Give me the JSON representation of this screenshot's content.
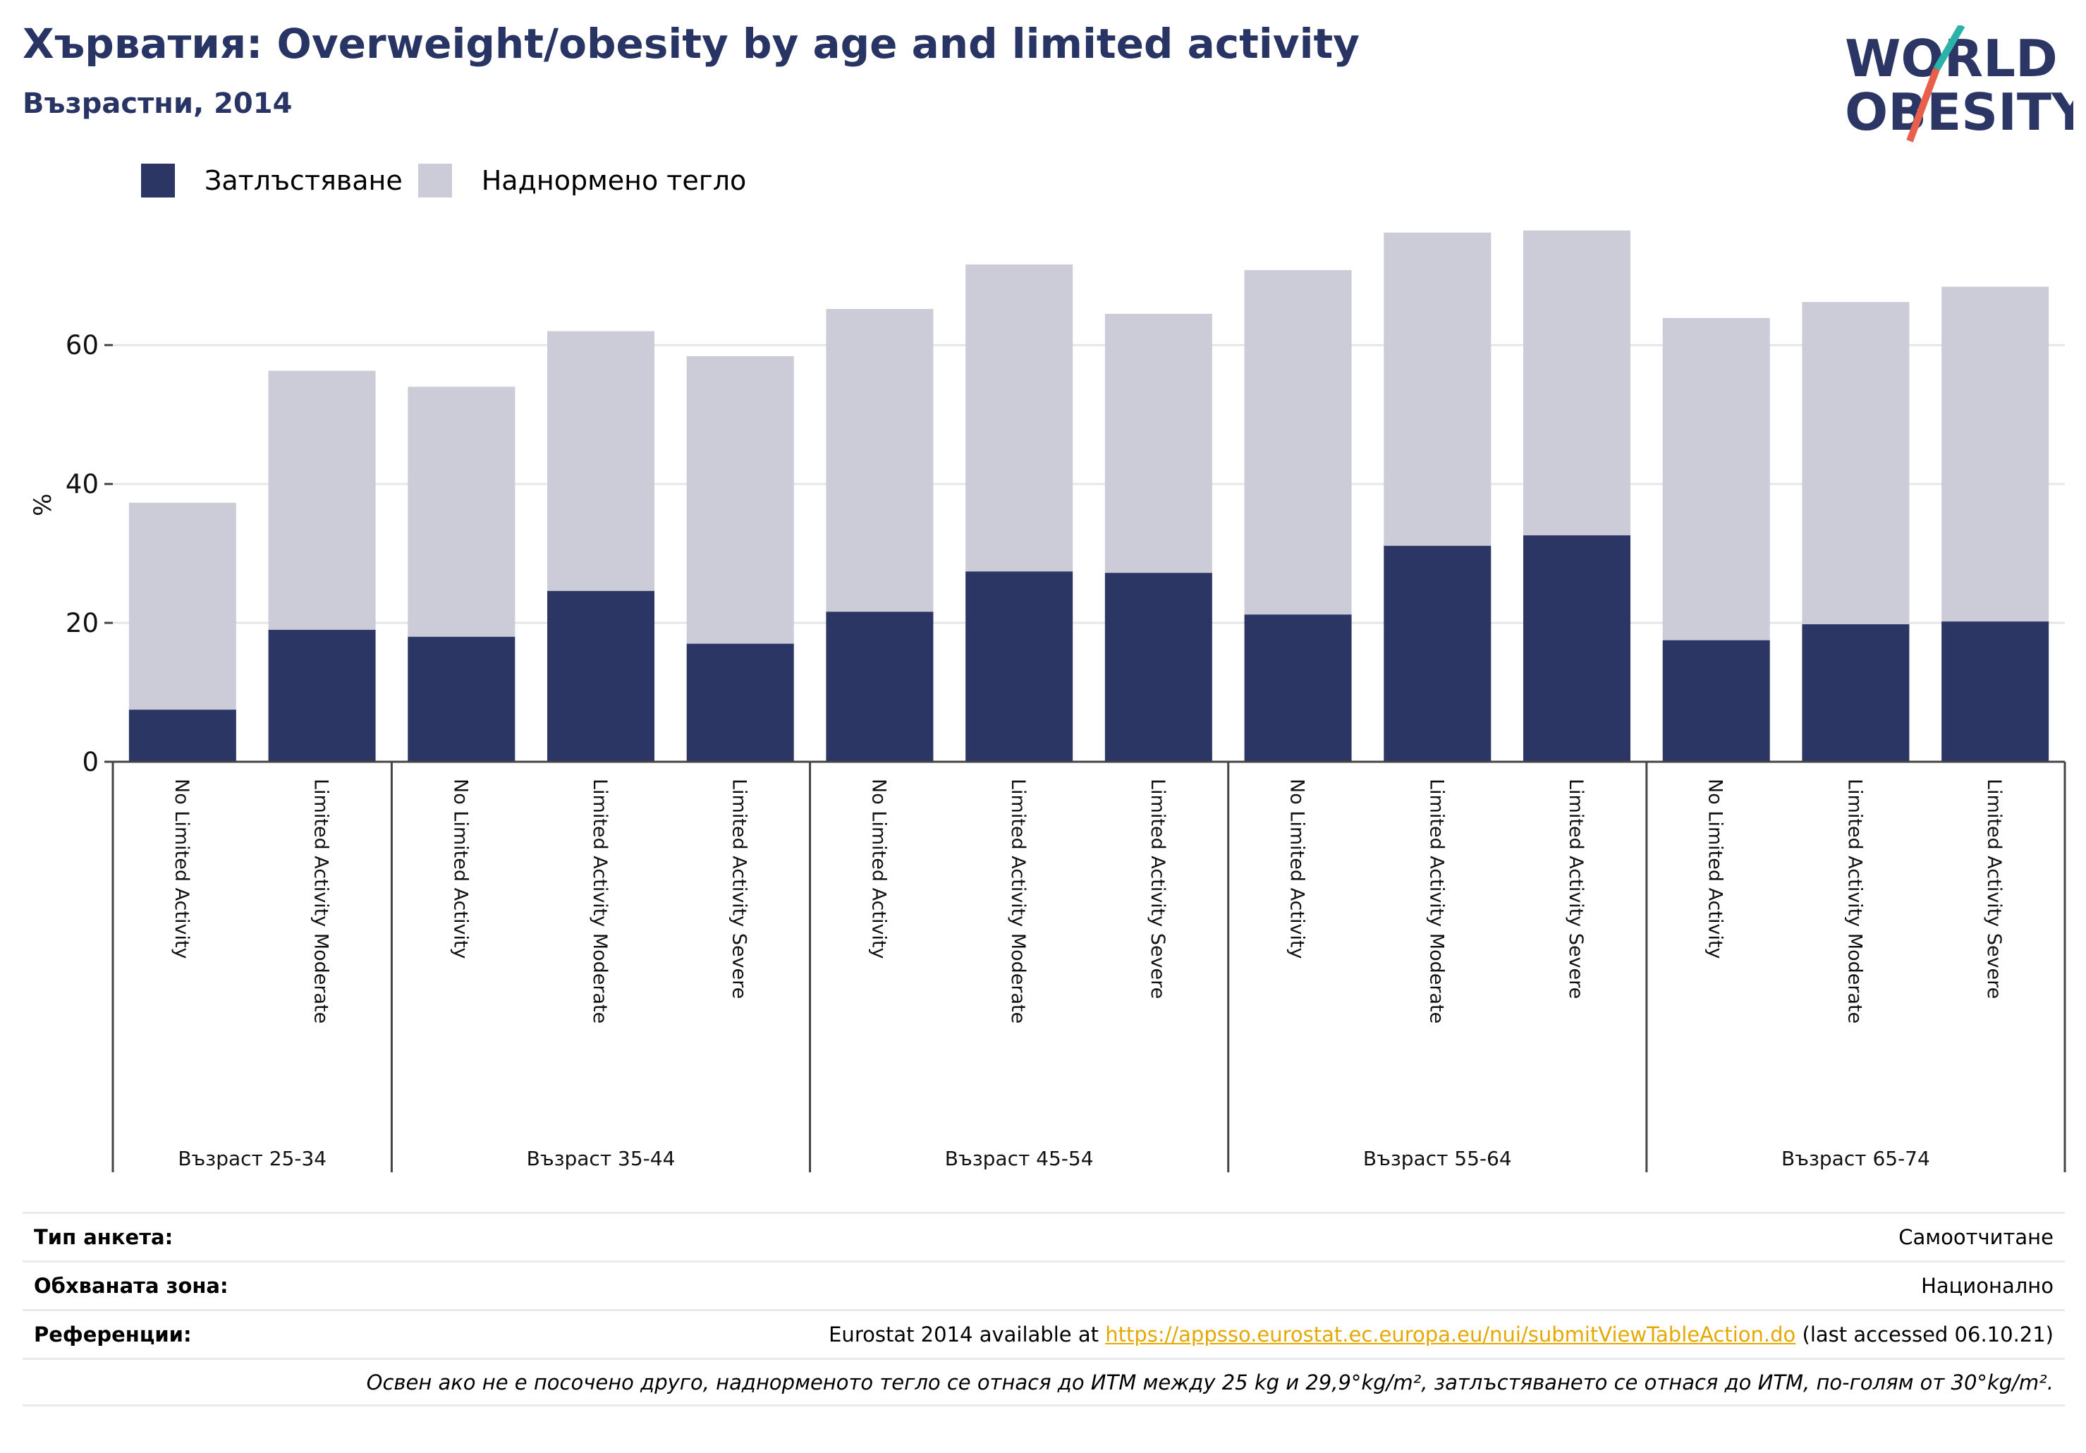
{
  "header": {
    "title": "Хърватия: Overweight/obesity by age and limited activity",
    "subtitle": "Възрастни, 2014"
  },
  "logo": {
    "line1": "WORLD",
    "line2": "OBESITY"
  },
  "colors": {
    "obesity": "#2b3664",
    "overweight": "#cbccd8",
    "title": "#283564",
    "logo_teal": "#2bb3a9",
    "logo_red": "#e8604c"
  },
  "chart_data": {
    "type": "bar",
    "stacked": true,
    "ylabel": "%",
    "ylim": [
      0,
      78
    ],
    "yticks": [
      0,
      20,
      40,
      60
    ],
    "grid": true,
    "legend_position": "top-left",
    "series": [
      {
        "name": "Затлъстяване",
        "values": [
          7.5,
          19,
          18,
          24.6,
          17,
          21.6,
          27.4,
          27.2,
          21.2,
          31.1,
          32.6,
          17.5,
          19.8,
          20.2
        ]
      },
      {
        "name": "Наднормено тегло",
        "values": [
          29.8,
          37.3,
          36,
          37.4,
          41.4,
          43.6,
          44.2,
          37.3,
          49.6,
          45.1,
          43.9,
          46.4,
          46.4,
          48.2
        ]
      }
    ],
    "categories": [
      "No Limited Activity",
      "Limited Activity Moderate",
      "No Limited Activity",
      "Limited Activity Moderate",
      "Limited Activity Severe",
      "No Limited Activity",
      "Limited Activity Moderate",
      "Limited Activity Severe",
      "No Limited Activity",
      "Limited Activity Moderate",
      "Limited Activity Severe",
      "No Limited Activity",
      "Limited Activity Moderate",
      "Limited Activity Severe"
    ],
    "groups": [
      {
        "label": "Възраст 25-34",
        "count": 2
      },
      {
        "label": "Възраст 35-44",
        "count": 3
      },
      {
        "label": "Възраст 45-54",
        "count": 3
      },
      {
        "label": "Възраст 55-64",
        "count": 3
      },
      {
        "label": "Възраст 65-74",
        "count": 3
      }
    ]
  },
  "footer": {
    "survey_label": "Тип анкета:",
    "survey_value": "Самоотчитане",
    "coverage_label": "Обхваната зона:",
    "coverage_value": "Национално",
    "refs_label": "Референции:",
    "refs_prefix": "Eurostat 2014 available at ",
    "refs_link": "https://appsso.eurostat.ec.europa.eu/nui/submitViewTableAction.do",
    "refs_suffix": " (last accessed 06.10.21)",
    "note": "Освен ако не е посочено друго, наднорменото тегло се отнася до ИТМ между 25 kg и 29,9°kg/m², затлъстяването се отнася до ИТМ, по-голям от 30°kg/m²."
  }
}
